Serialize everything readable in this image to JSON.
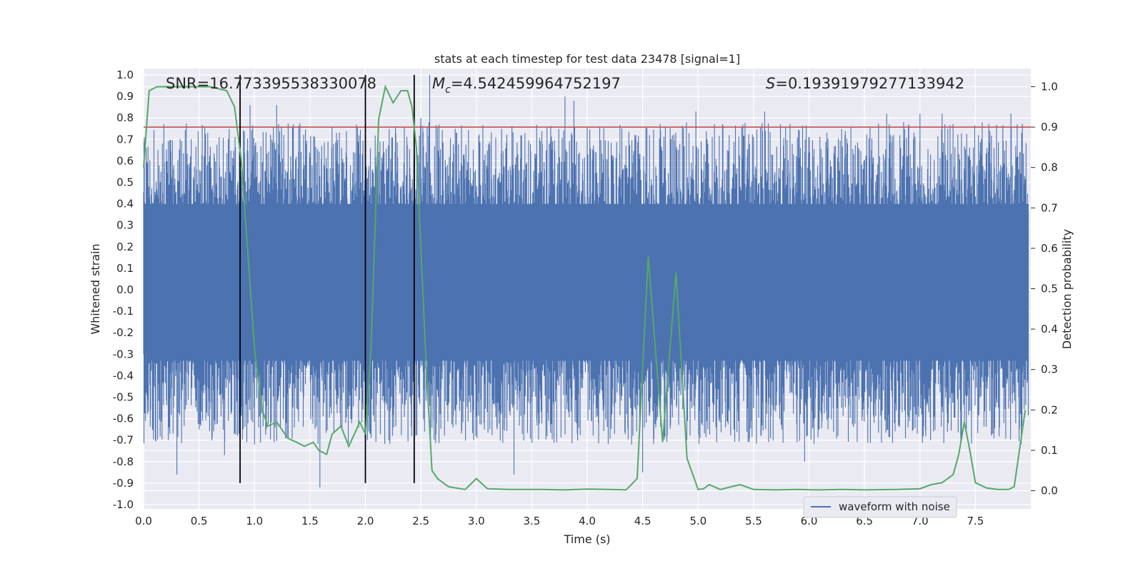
{
  "chart_data": {
    "type": "line",
    "title": "stats at each timestep for test data 23478 [signal=1]",
    "xlabel": "Time (s)",
    "ylabel": "Whitened strain",
    "ylabel_right": "Detection probability",
    "xlim": [
      0,
      8
    ],
    "ylim": [
      -1.02,
      1.03
    ],
    "ylim_right": [
      -0.045,
      1.045
    ],
    "xticks": [
      "0.0",
      "0.5",
      "1.0",
      "1.5",
      "2.0",
      "2.5",
      "3.0",
      "3.5",
      "4.0",
      "4.5",
      "5.0",
      "5.5",
      "6.0",
      "6.5",
      "7.0",
      "7.5"
    ],
    "yticks": [
      "1.0",
      "0.9",
      "0.8",
      "0.7",
      "0.6",
      "0.5",
      "0.4",
      "0.3",
      "0.2",
      "0.1",
      "0.0",
      "-0.1",
      "-0.2",
      "-0.3",
      "-0.4",
      "-0.5",
      "-0.6",
      "-0.7",
      "-0.8",
      "-0.9",
      "-1.0"
    ],
    "yticks_right": [
      "1.0",
      "0.9",
      "0.8",
      "0.7",
      "0.6",
      "0.5",
      "0.4",
      "0.3",
      "0.2",
      "0.1",
      "0.0"
    ],
    "grid": true,
    "legend": {
      "position": "lower-right",
      "entries": [
        "waveform with noise"
      ]
    },
    "annotations": {
      "snr": "SNR=16.773395538330078",
      "mc_symbol": "M",
      "mc_subscript": "c",
      "mc_value": "=4.542459964752197",
      "s_symbol": "S",
      "s_value": "=0.19391979277133942"
    },
    "threshold": {
      "value": 0.9,
      "axis": "right",
      "color": "#c44e52"
    },
    "vertical_lines": {
      "x": [
        0.87,
        2.0,
        2.44
      ],
      "y_range": [
        -0.9,
        1.0
      ],
      "color": "#000000"
    },
    "waveform": {
      "name": "waveform with noise",
      "color": "#4c72b0",
      "duration": 7.98,
      "dense_band": [
        -0.33,
        0.4
      ],
      "spike_times": [
        0.3,
        0.73,
        0.85,
        0.96,
        1.0,
        1.2,
        1.45,
        1.59,
        2.5,
        2.58,
        3.34,
        3.8,
        3.88,
        4.4,
        4.5,
        4.98,
        5.6,
        5.96,
        6.7,
        7.0,
        7.2,
        7.82
      ],
      "spike_values": [
        -0.86,
        -0.77,
        0.4,
        0.86,
        -0.72,
        0.86,
        0.58,
        -0.92,
        0.8,
        1.0,
        -0.86,
        0.9,
        0.88,
        -0.72,
        -0.85,
        0.83,
        0.83,
        -0.8,
        0.82,
        0.82,
        0.82,
        0.82
      ]
    },
    "detection_probability": {
      "color": "#55a868",
      "x": [
        0.0,
        0.05,
        0.12,
        0.2,
        0.4,
        0.6,
        0.75,
        0.82,
        0.88,
        0.95,
        1.0,
        1.07,
        1.12,
        1.2,
        1.25,
        1.3,
        1.38,
        1.45,
        1.53,
        1.58,
        1.65,
        1.7,
        1.78,
        1.85,
        1.9,
        1.95,
        2.0,
        2.05,
        2.12,
        2.18,
        2.25,
        2.32,
        2.38,
        2.42,
        2.46,
        2.5,
        2.55,
        2.6,
        2.65,
        2.75,
        2.9,
        3.0,
        3.1,
        3.3,
        3.6,
        3.8,
        4.0,
        4.2,
        4.35,
        4.45,
        4.55,
        4.68,
        4.8,
        4.9,
        5.0,
        5.05,
        5.1,
        5.2,
        5.3,
        5.38,
        5.5,
        5.7,
        5.9,
        6.1,
        6.3,
        6.5,
        6.8,
        7.0,
        7.1,
        7.2,
        7.3,
        7.35,
        7.4,
        7.45,
        7.5,
        7.6,
        7.7,
        7.8,
        7.85,
        7.95
      ],
      "y": [
        0.8,
        0.99,
        1.0,
        1.0,
        1.0,
        1.0,
        0.99,
        0.95,
        0.82,
        0.55,
        0.35,
        0.2,
        0.16,
        0.17,
        0.15,
        0.13,
        0.12,
        0.11,
        0.12,
        0.1,
        0.09,
        0.14,
        0.16,
        0.11,
        0.14,
        0.17,
        0.14,
        0.35,
        0.92,
        1.0,
        0.96,
        0.99,
        0.99,
        0.95,
        0.85,
        0.6,
        0.3,
        0.05,
        0.03,
        0.01,
        0.003,
        0.03,
        0.005,
        0.003,
        0.003,
        0.002,
        0.004,
        0.003,
        0.002,
        0.03,
        0.58,
        0.12,
        0.54,
        0.08,
        0.003,
        0.005,
        0.015,
        0.003,
        0.01,
        0.015,
        0.003,
        0.002,
        0.003,
        0.002,
        0.003,
        0.002,
        0.003,
        0.005,
        0.015,
        0.02,
        0.04,
        0.09,
        0.17,
        0.1,
        0.02,
        0.007,
        0.003,
        0.003,
        0.01,
        0.2
      ]
    }
  }
}
